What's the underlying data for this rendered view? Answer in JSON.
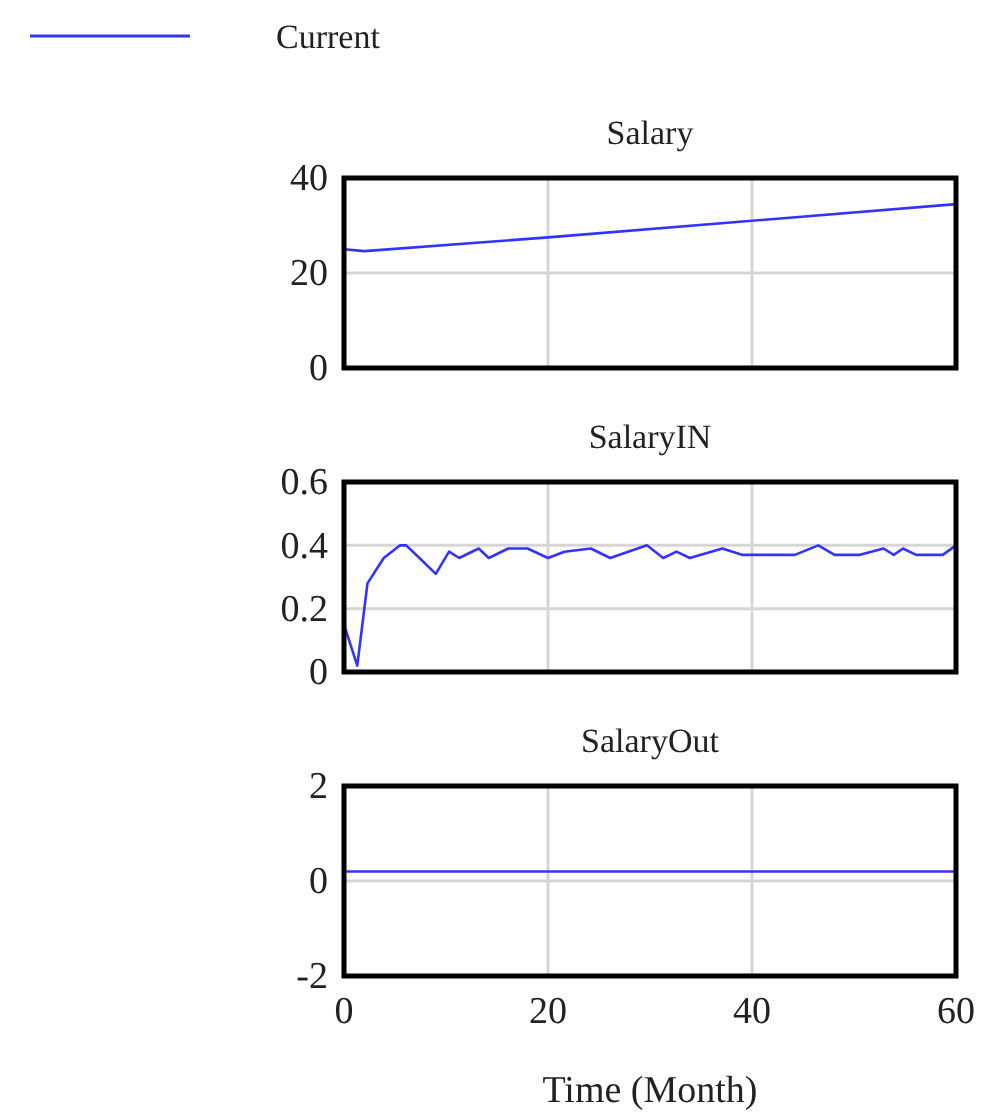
{
  "chart_data": [
    {
      "type": "line",
      "title": "Salary",
      "legend": "top left",
      "grid": true,
      "tick_labels": "y",
      "xlim": [
        0,
        60
      ],
      "xticks": [
        0,
        20,
        40,
        60
      ],
      "ylim": [
        0,
        40
      ],
      "yticks": [
        0,
        20,
        40
      ],
      "series": [
        {
          "name": "Current",
          "color": "#3333ff",
          "x": [
            0,
            2,
            20,
            40,
            60
          ],
          "values": [
            25,
            24.6,
            27.5,
            31,
            34.5
          ]
        }
      ]
    },
    {
      "type": "line",
      "title": "SalaryIN",
      "grid": true,
      "tick_labels": "y",
      "xlim": [
        0,
        60
      ],
      "xticks": [
        0,
        20,
        40,
        60
      ],
      "ylim": [
        0,
        0.6
      ],
      "yticks": [
        0,
        0.2,
        0.4,
        0.6
      ],
      "series": [
        {
          "color": "#3333ff",
          "x": [
            0,
            1.3,
            2.3,
            3.9,
            5.5,
            6.1,
            7.4,
            9,
            10.3,
            11.3,
            13.2,
            14.2,
            16.1,
            18,
            20,
            21.6,
            24.2,
            26.1,
            29.7,
            31.3,
            32.6,
            33.9,
            37.1,
            39,
            41.6,
            44.2,
            46.5,
            48.1,
            50.6,
            52.9,
            53.9,
            54.8,
            56.1,
            58.7,
            60
          ],
          "values": [
            0.15,
            0.02,
            0.28,
            0.36,
            0.4,
            0.4,
            0.36,
            0.31,
            0.38,
            0.36,
            0.39,
            0.36,
            0.39,
            0.39,
            0.36,
            0.38,
            0.39,
            0.36,
            0.4,
            0.36,
            0.38,
            0.36,
            0.39,
            0.37,
            0.37,
            0.37,
            0.4,
            0.37,
            0.37,
            0.39,
            0.37,
            0.39,
            0.37,
            0.37,
            0.4
          ]
        }
      ]
    },
    {
      "type": "line",
      "title": "SalaryOut",
      "xlabel": "Time (Month)",
      "grid": true,
      "xlim": [
        0,
        60
      ],
      "xticks": [
        0,
        20,
        40,
        60
      ],
      "ylim": [
        -2,
        2
      ],
      "yticks": [
        -2,
        0,
        2
      ],
      "series": [
        {
          "color": "#3333ff",
          "x": [
            0,
            60
          ],
          "values": [
            0.2,
            0.2
          ]
        }
      ]
    }
  ]
}
